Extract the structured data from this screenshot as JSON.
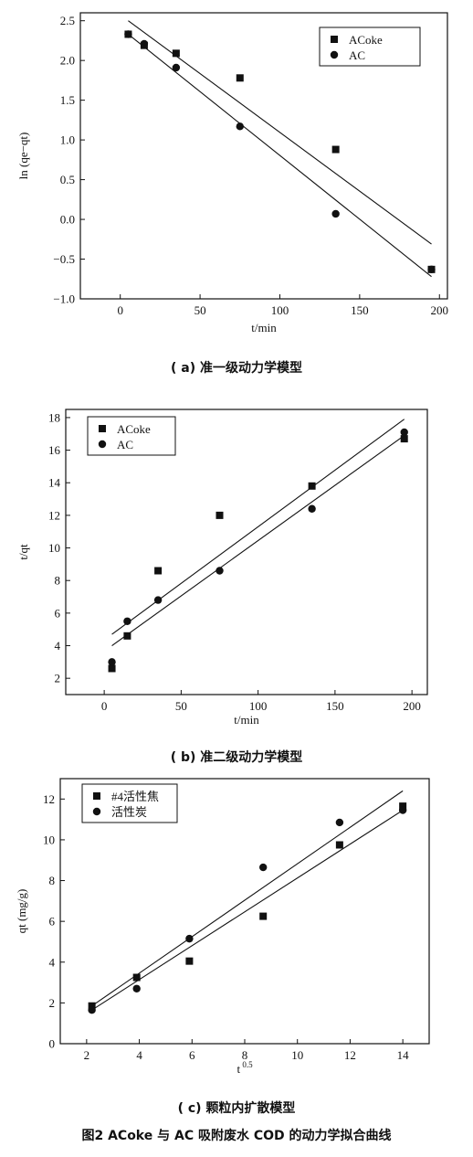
{
  "figure_caption": "图2 ACoke 与 AC 吸附废水 COD 的动力学拟合曲线",
  "chart_data": [
    {
      "type": "scatter",
      "caption": "( a) 准一级动力学模型",
      "xlabel": "t/min",
      "ylabel": "ln (qe−qt)",
      "xlim": [
        -25,
        205
      ],
      "ylim": [
        -1.0,
        2.6
      ],
      "xticks": [
        0,
        50,
        100,
        150,
        200
      ],
      "xtick_labels": [
        "0",
        "50",
        "100",
        "150",
        "200"
      ],
      "yticks": [
        -1.0,
        -0.5,
        0.0,
        0.5,
        1.0,
        1.5,
        2.0,
        2.5
      ],
      "ytick_labels": [
        "−1.0",
        "−0.5",
        "0.0",
        "0.5",
        "1.0",
        "1.5",
        "2.0",
        "2.5"
      ],
      "legend_position": "top-right",
      "grid": false,
      "series": [
        {
          "name": "ACoke",
          "marker": "square",
          "x": [
            5,
            15,
            35,
            75,
            135,
            195
          ],
          "y": [
            2.33,
            2.19,
            2.09,
            1.78,
            0.88,
            -0.63
          ],
          "fit": {
            "x": [
              5,
              195
            ],
            "y": [
              2.5,
              -0.31
            ]
          }
        },
        {
          "name": "AC",
          "marker": "circle",
          "x": [
            5,
            15,
            35,
            75,
            135,
            195
          ],
          "y": [
            2.33,
            2.21,
            1.91,
            1.17,
            0.07,
            -0.63
          ],
          "fit": {
            "x": [
              5,
              195
            ],
            "y": [
              2.33,
              -0.72
            ]
          }
        }
      ]
    },
    {
      "type": "scatter",
      "caption": "( b) 准二级动力学模型",
      "xlabel": "t/min",
      "ylabel": "t/qt",
      "xlim": [
        -25,
        210
      ],
      "ylim": [
        1,
        18.5
      ],
      "xticks": [
        0,
        50,
        100,
        150,
        200
      ],
      "xtick_labels": [
        "0",
        "50",
        "100",
        "150",
        "200"
      ],
      "yticks": [
        2,
        4,
        6,
        8,
        10,
        12,
        14,
        16,
        18
      ],
      "ytick_labels": [
        "2",
        "4",
        "6",
        "8",
        "10",
        "12",
        "14",
        "16",
        "18"
      ],
      "legend_position": "top-left",
      "grid": false,
      "series": [
        {
          "name": "ACoke",
          "marker": "square",
          "x": [
            5,
            15,
            35,
            75,
            135,
            195
          ],
          "y": [
            2.6,
            4.6,
            8.6,
            12.0,
            13.8,
            16.7
          ],
          "fit": {
            "x": [
              5,
              195
            ],
            "y": [
              4.7,
              17.9
            ]
          }
        },
        {
          "name": "AC",
          "marker": "circle",
          "x": [
            5,
            15,
            35,
            75,
            135,
            195
          ],
          "y": [
            3.0,
            5.5,
            6.8,
            8.6,
            12.4,
            17.1
          ],
          "fit": {
            "x": [
              5,
              195
            ],
            "y": [
              4.0,
              16.9
            ]
          }
        }
      ]
    },
    {
      "type": "scatter",
      "caption": "( c) 颗粒内扩散模型",
      "xlabel": "t 0.5",
      "ylabel": "qt (mg/g)",
      "xlim": [
        1,
        15
      ],
      "ylim": [
        0,
        13
      ],
      "xticks": [
        2,
        4,
        6,
        8,
        10,
        12,
        14
      ],
      "xtick_labels": [
        "2",
        "4",
        "6",
        "8",
        "10",
        "12",
        "14"
      ],
      "yticks": [
        0,
        2,
        4,
        6,
        8,
        10,
        12
      ],
      "ytick_labels": [
        "0",
        "2",
        "4",
        "6",
        "8",
        "10",
        "12"
      ],
      "legend_position": "top-left",
      "grid": false,
      "series": [
        {
          "name": "#4活性焦",
          "marker": "square",
          "x": [
            2.2,
            3.9,
            5.9,
            8.7,
            11.6,
            14.0
          ],
          "y": [
            1.85,
            3.25,
            4.05,
            6.25,
            9.75,
            11.65
          ],
          "fit": {
            "x": [
              2.2,
              14.0
            ],
            "y": [
              1.65,
              11.45
            ]
          }
        },
        {
          "name": "活性炭",
          "marker": "circle",
          "x": [
            2.2,
            3.9,
            5.9,
            8.7,
            11.6,
            14.0
          ],
          "y": [
            1.65,
            2.7,
            5.15,
            8.65,
            10.85,
            11.45
          ],
          "fit": {
            "x": [
              2.2,
              14.0
            ],
            "y": [
              1.85,
              12.4
            ]
          }
        }
      ]
    }
  ]
}
